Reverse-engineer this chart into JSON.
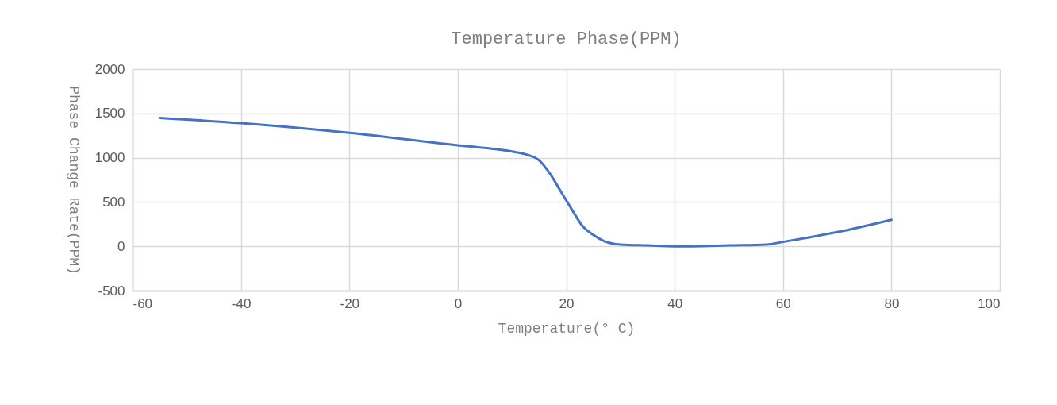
{
  "chart_data": {
    "type": "line",
    "title": "Temperature Phase(PPM)",
    "xlabel": "Temperature(° C)",
    "ylabel": "Phase Change Rate(PPM)",
    "x": [
      -55,
      -40,
      -20,
      0,
      5,
      10,
      13,
      15,
      17,
      19,
      21,
      23,
      25,
      27,
      30,
      35,
      40,
      43,
      50,
      57,
      60,
      70,
      80
    ],
    "series": [
      {
        "color": "#4472c4",
        "values": [
          1450,
          1390,
          1280,
          1140,
          1110,
          1070,
          1030,
          970,
          820,
          620,
          420,
          230,
          130,
          60,
          20,
          10,
          0,
          0,
          10,
          20,
          50,
          160,
          300
        ]
      }
    ],
    "xlim": [
      -60,
      100
    ],
    "xticks": [
      -60,
      -40,
      -20,
      0,
      20,
      40,
      60,
      80,
      100
    ],
    "ylim": [
      -500,
      2000
    ],
    "yticks": [
      -500,
      0,
      500,
      1000,
      1500,
      2000
    ],
    "grid": true,
    "marker": "none",
    "line_style": "solid"
  }
}
